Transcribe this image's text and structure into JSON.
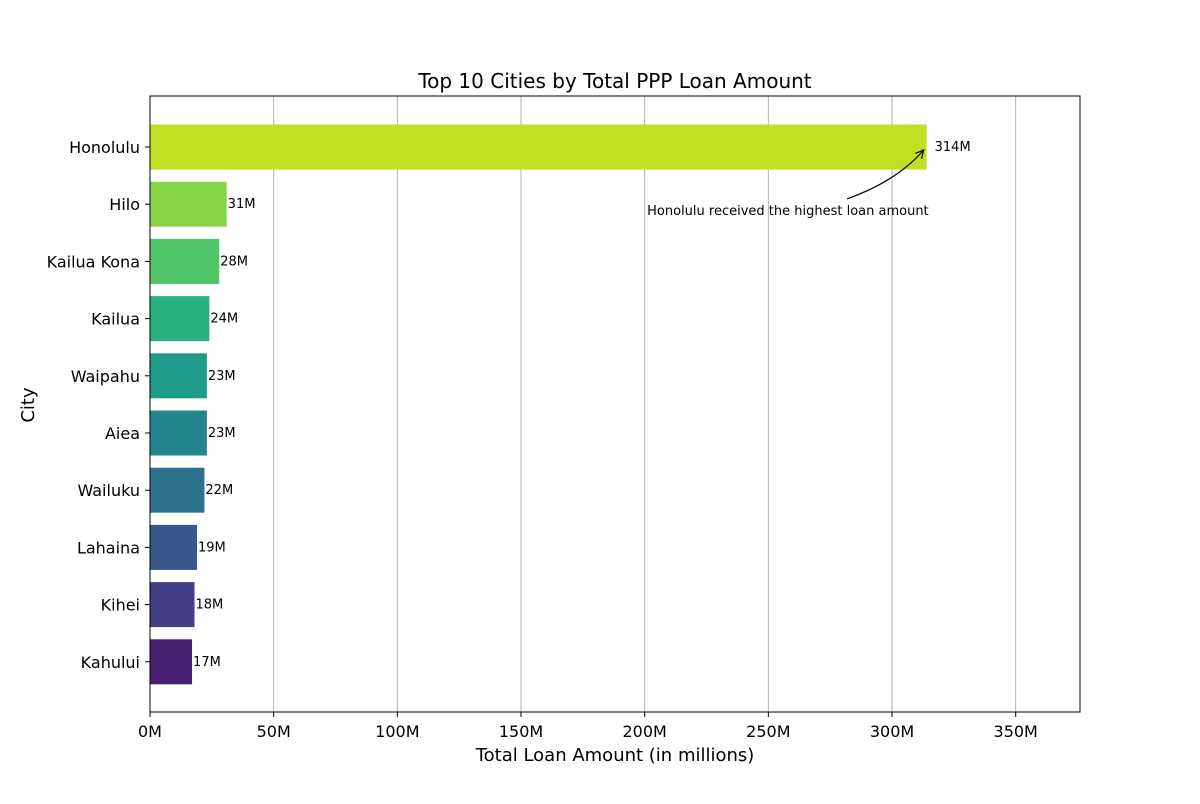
{
  "chart_data": {
    "type": "bar",
    "orientation": "horizontal",
    "title": "Top 10 Cities by Total PPP Loan Amount",
    "xlabel": "Total Loan Amount (in millions)",
    "ylabel": "City",
    "categories": [
      "Honolulu",
      "Hilo",
      "Kailua Kona",
      "Kailua",
      "Waipahu",
      "Aiea",
      "Wailuku",
      "Lahaina",
      "Kihei",
      "Kahului"
    ],
    "values": [
      314,
      31,
      28,
      24,
      23,
      23,
      22,
      19,
      18,
      17
    ],
    "value_labels": [
      "314M",
      "31M",
      "28M",
      "24M",
      "23M",
      "23M",
      "22M",
      "19M",
      "18M",
      "17M"
    ],
    "colors": [
      "#c2df23",
      "#86d549",
      "#52c569",
      "#2ab07f",
      "#1e9b8a",
      "#25858e",
      "#2d708e",
      "#38588c",
      "#433e85",
      "#482173"
    ],
    "xlim": [
      0,
      376
    ],
    "xticks": [
      0,
      50,
      100,
      150,
      200,
      250,
      300,
      350
    ],
    "xtick_labels": [
      "0M",
      "50M",
      "100M",
      "150M",
      "200M",
      "250M",
      "300M",
      "350M"
    ],
    "grid": "x",
    "annotation": {
      "text": "Honolulu received the highest loan amount",
      "target_category": "Honolulu",
      "target_value": 314,
      "text_value": 201,
      "text_category_offset": 1.1
    }
  }
}
